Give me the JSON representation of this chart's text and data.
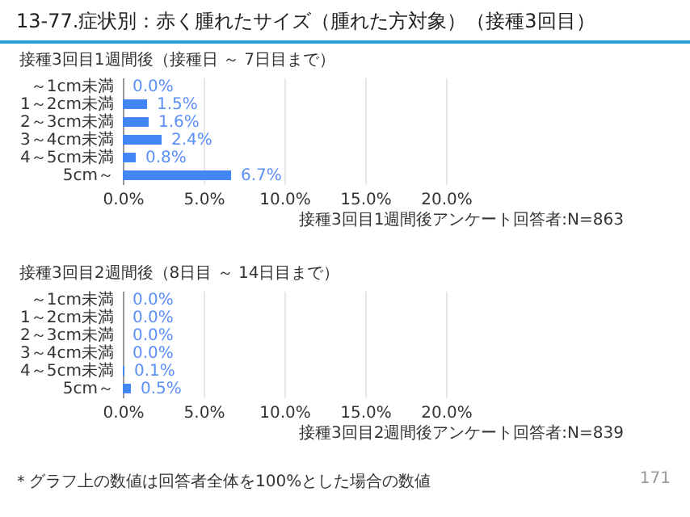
{
  "chart_data": [
    {
      "type": "bar",
      "orientation": "horizontal",
      "title": "13-77.症状別：赤く腫れたサイズ（腫れた方対象）（接種3回目）",
      "subtitle": "接種3回目1週間後（接種日 ～ 7日目まで）",
      "categories": [
        "～1cm未満",
        "1～2cm未満",
        "2～3cm未満",
        "3～4cm未満",
        "4～5cm未満",
        "5cm～"
      ],
      "values": [
        0.0,
        1.5,
        1.6,
        2.4,
        0.8,
        6.7
      ],
      "value_labels": [
        "0.0%",
        "1.5%",
        "1.6%",
        "2.4%",
        "0.8%",
        "6.7%"
      ],
      "color": "#4285f4",
      "xlim": [
        0,
        20
      ],
      "xticks": [
        {
          "value": 0,
          "label": "0.0%"
        },
        {
          "value": 5,
          "label": "5.0%"
        },
        {
          "value": 10,
          "label": "10.0%"
        },
        {
          "value": 15,
          "label": "15.0%"
        },
        {
          "value": 20,
          "label": "20.0%"
        }
      ],
      "grid": "x",
      "annotations": [
        "接種3回目1週間後アンケート回答者:N=863"
      ]
    },
    {
      "type": "bar",
      "orientation": "horizontal",
      "title": "接種3回目2週間後（8日目 ～ 14日目まで）",
      "categories": [
        "～1cm未満",
        "1～2cm未満",
        "2～3cm未満",
        "3～4cm未満",
        "4～5cm未満",
        "5cm～"
      ],
      "values": [
        0.0,
        0.0,
        0.0,
        0.0,
        0.1,
        0.5
      ],
      "value_labels": [
        "0.0%",
        "0.0%",
        "0.0%",
        "0.0%",
        "0.1%",
        "0.5%"
      ],
      "color": "#4285f4",
      "xlim": [
        0,
        20
      ],
      "xticks": [
        {
          "value": 0,
          "label": "0.0%"
        },
        {
          "value": 5,
          "label": "5.0%"
        },
        {
          "value": 10,
          "label": "10.0%"
        },
        {
          "value": 15,
          "label": "15.0%"
        },
        {
          "value": 20,
          "label": "20.0%"
        }
      ],
      "grid": "x",
      "annotations": [
        "接種3回目2週間後アンケート回答者:N=839",
        "＊グラフ上の数値は回答者全体を100%とした場合の数値",
        "171"
      ]
    }
  ]
}
